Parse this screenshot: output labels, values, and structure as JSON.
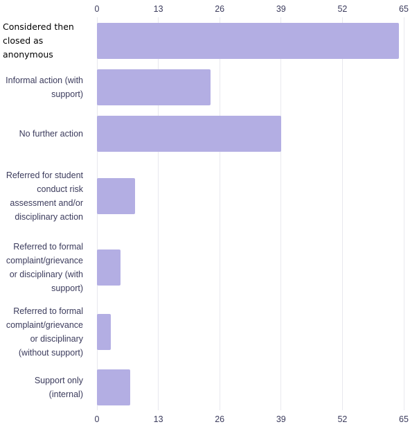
{
  "chart_data": {
    "type": "bar",
    "orientation": "horizontal",
    "categories": [
      "Considered then closed as anonymous",
      "Informal action (with support)",
      "No further action",
      "Referred for student conduct risk assessment and/or disciplinary action",
      "Referred to formal complaint/grievance or disciplinary (with support)",
      "Referred to formal complaint/grievance or disciplinary (without support)",
      "Support only (internal)"
    ],
    "values": [
      64,
      24,
      39,
      8,
      5,
      3,
      7
    ],
    "color": "#b3aee3",
    "xlim": [
      0,
      65
    ],
    "xticks": [
      0,
      13,
      26,
      39,
      52,
      65
    ],
    "grid": true
  }
}
